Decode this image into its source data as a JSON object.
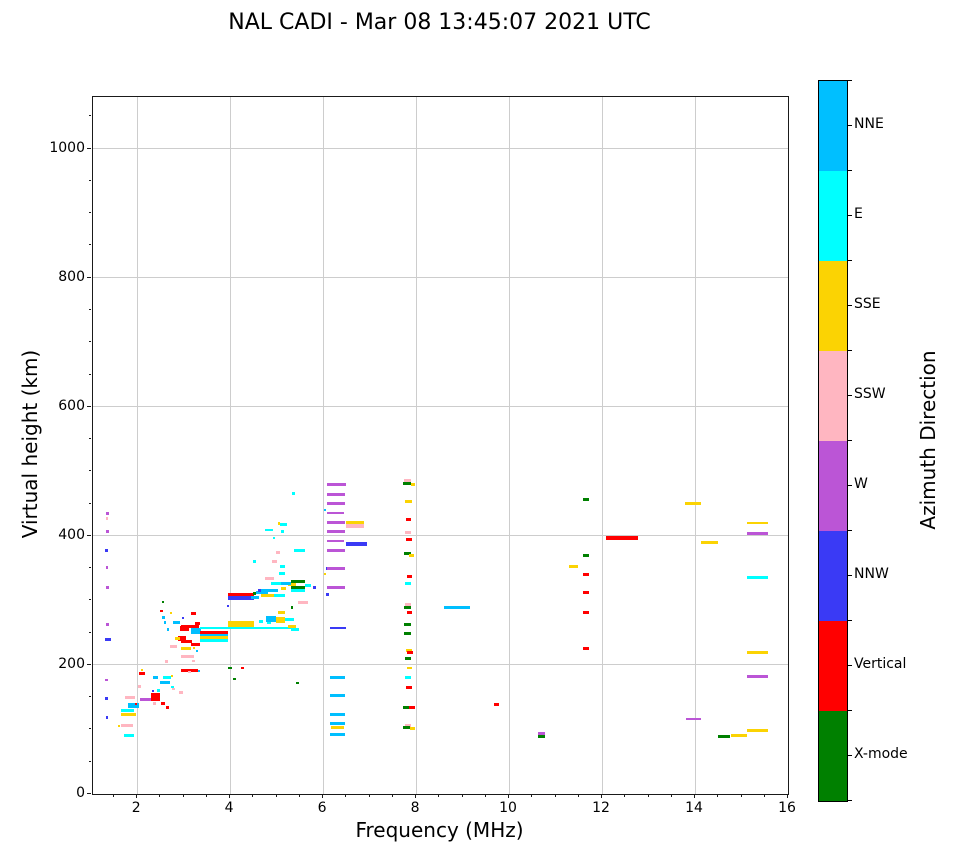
{
  "title": "NAL CADI - Mar 08 13:45:07 2021 UTC",
  "chart_data": {
    "type": "scatter",
    "title": "NAL CADI - Mar 08 13:45:07 2021 UTC",
    "xlabel": "Frequency (MHz)",
    "ylabel": "Virtual height (km)",
    "xlim": [
      1.05,
      16
    ],
    "ylim": [
      0,
      1080
    ],
    "x_ticks": [
      2,
      4,
      6,
      8,
      10,
      12,
      14,
      16
    ],
    "x_minor_step": 0.5,
    "y_ticks": [
      0,
      200,
      400,
      600,
      800,
      1000
    ],
    "y_minor_step": 50,
    "grid": true,
    "colorbar": {
      "label": "Azimuth Direction",
      "categories": [
        {
          "key": "NNE",
          "label": "NNE",
          "color": "#00BFFF"
        },
        {
          "key": "E",
          "label": "E",
          "color": "#00FFFF"
        },
        {
          "key": "SSE",
          "label": "SSE",
          "color": "#FBD303"
        },
        {
          "key": "SSW",
          "label": "SSW",
          "color": "#FFB6C1"
        },
        {
          "key": "W",
          "label": "W",
          "color": "#BB55D6"
        },
        {
          "key": "NNW",
          "label": "NNW",
          "color": "#3A3AF5"
        },
        {
          "key": "V",
          "label": "Vertical",
          "color": "#FF0000"
        },
        {
          "key": "X",
          "label": "X-mode",
          "color": "#008000"
        }
      ]
    },
    "point_format": [
      "freq_start_MHz",
      "freq_end_MHz",
      "height_km",
      "direction",
      "thickness_px_optional"
    ],
    "points": [
      [
        1.33,
        1.39,
        435,
        "W"
      ],
      [
        1.32,
        1.37,
        427,
        "SSW"
      ],
      [
        1.33,
        1.39,
        407,
        "W"
      ],
      [
        1.31,
        1.37,
        378,
        "NNW"
      ],
      [
        1.33,
        1.38,
        351,
        "W"
      ],
      [
        1.33,
        1.39,
        320,
        "W"
      ],
      [
        1.33,
        1.39,
        263,
        "W"
      ],
      [
        1.31,
        1.44,
        239,
        "NNW"
      ],
      [
        1.31,
        1.37,
        177,
        "W",
        2
      ],
      [
        1.31,
        1.37,
        148,
        "NNW"
      ],
      [
        1.32,
        1.38,
        118,
        "NNW"
      ],
      [
        1.59,
        1.64,
        105,
        "SSE",
        2
      ],
      [
        1.72,
        1.94,
        91,
        "E"
      ],
      [
        1.66,
        1.91,
        105.5,
        "SSW"
      ],
      [
        1.66,
        1.98,
        123.5,
        "SSE"
      ],
      [
        1.66,
        1.94,
        129,
        "E"
      ],
      [
        1.8,
        2.05,
        137,
        "NNE",
        5
      ],
      [
        1.74,
        1.96,
        150,
        "SSW"
      ],
      [
        1.95,
        2.0,
        140,
        "V",
        2
      ],
      [
        2.01,
        2.09,
        167,
        "SSW"
      ],
      [
        2.05,
        2.16,
        187,
        "V"
      ],
      [
        2.08,
        2.13,
        192,
        "SSE",
        2
      ],
      [
        2.07,
        2.29,
        146,
        "W"
      ],
      [
        2.29,
        2.5,
        150,
        "V",
        8
      ],
      [
        2.34,
        2.41,
        139.5,
        "SSW"
      ],
      [
        2.32,
        2.37,
        160,
        "NNW",
        2
      ],
      [
        2.43,
        2.5,
        160,
        "E"
      ],
      [
        2.34,
        2.45,
        180,
        "NNE"
      ],
      [
        2.5,
        2.7,
        172.5,
        "NNE"
      ],
      [
        2.55,
        2.72,
        181,
        "E"
      ],
      [
        2.72,
        2.77,
        183,
        "SSE",
        2
      ],
      [
        2.52,
        2.59,
        140,
        "V"
      ],
      [
        2.62,
        2.68,
        134,
        "V"
      ],
      [
        2.73,
        2.8,
        166,
        "E",
        2
      ],
      [
        2.76,
        2.81,
        162,
        "SSW",
        2
      ],
      [
        2.91,
        2.98,
        158,
        "SSW"
      ],
      [
        2.59,
        2.66,
        205,
        "SSW"
      ],
      [
        2.54,
        2.58,
        297,
        "X",
        2
      ],
      [
        2.5,
        2.55,
        284,
        "V",
        2
      ],
      [
        2.54,
        2.59,
        273,
        "NNE"
      ],
      [
        2.58,
        2.63,
        265,
        "NNE"
      ],
      [
        2.64,
        2.69,
        255,
        "NNE"
      ],
      [
        2.71,
        2.76,
        280,
        "SSE",
        2
      ],
      [
        2.97,
        3.01,
        273,
        "NNW",
        2
      ],
      [
        2.77,
        2.92,
        266,
        "NNE"
      ],
      [
        2.93,
        3.11,
        256,
        "V",
        5
      ],
      [
        2.88,
        3.06,
        241,
        "V",
        5
      ],
      [
        2.7,
        2.85,
        228,
        "SSW"
      ],
      [
        2.81,
        2.93,
        241,
        "SSE"
      ],
      [
        2.95,
        3.33,
        259,
        "V"
      ],
      [
        3.16,
        3.38,
        252,
        "NNE",
        6
      ],
      [
        3.16,
        3.27,
        279,
        "V"
      ],
      [
        3.25,
        3.36,
        264,
        "V"
      ],
      [
        3.16,
        3.36,
        232,
        "V"
      ],
      [
        3.2,
        3.25,
        226,
        "SSE",
        2
      ],
      [
        3.27,
        3.31,
        221,
        "NNE",
        2
      ],
      [
        2.95,
        3.23,
        213,
        "SSW"
      ],
      [
        3.19,
        3.24,
        206,
        "SSW",
        2
      ],
      [
        2.95,
        3.31,
        191,
        "V"
      ],
      [
        3.1,
        3.15,
        189,
        "SSW",
        2
      ],
      [
        3.3,
        3.35,
        191,
        "NNE",
        2
      ],
      [
        2.95,
        3.17,
        237,
        "V"
      ],
      [
        2.95,
        3.15,
        226,
        "SSE"
      ],
      [
        3.36,
        3.95,
        250,
        "V"
      ],
      [
        3.36,
        3.95,
        245.5,
        "NNE"
      ],
      [
        3.36,
        3.95,
        242,
        "SSE"
      ],
      [
        3.36,
        3.95,
        237.5,
        "E"
      ],
      [
        3.95,
        4.52,
        309,
        "V",
        4
      ],
      [
        3.95,
        4.52,
        303,
        "NNW",
        4
      ],
      [
        4.5,
        4.55,
        310,
        "X",
        3
      ],
      [
        4.56,
        4.81,
        312,
        "NNE"
      ],
      [
        4.63,
        5.03,
        316,
        "NNE"
      ],
      [
        4.61,
        4.67,
        316,
        "NNW"
      ],
      [
        4.67,
        4.95,
        308,
        "SSE"
      ],
      [
        4.95,
        5.17,
        307,
        "E"
      ],
      [
        4.45,
        4.63,
        304,
        "NNE"
      ],
      [
        3.95,
        4.52,
        262.5,
        "SSE",
        7
      ],
      [
        3.36,
        5.31,
        256.5,
        "E",
        2
      ],
      [
        4.63,
        4.7,
        267,
        "E"
      ],
      [
        4.8,
        4.87,
        265,
        "E"
      ],
      [
        3.93,
        3.97,
        292,
        "NNW",
        2
      ],
      [
        5.33,
        5.39,
        466,
        "E"
      ],
      [
        4.74,
        4.92,
        409,
        "E",
        2
      ],
      [
        5.02,
        5.07,
        419,
        "SSE"
      ],
      [
        5.08,
        5.22,
        418,
        "E"
      ],
      [
        5.1,
        5.15,
        406,
        "E"
      ],
      [
        4.92,
        4.97,
        397,
        "E",
        2
      ],
      [
        5.38,
        5.6,
        378,
        "E"
      ],
      [
        4.99,
        5.08,
        374,
        "SSW"
      ],
      [
        4.9,
        5.01,
        360,
        "SSW"
      ],
      [
        4.49,
        4.56,
        361,
        "E"
      ],
      [
        5.08,
        5.17,
        353,
        "E"
      ],
      [
        4.74,
        4.95,
        334,
        "SSW"
      ],
      [
        5.06,
        5.17,
        341,
        "E"
      ],
      [
        5.31,
        5.6,
        330,
        "X"
      ],
      [
        5.24,
        5.42,
        324,
        "SSE"
      ],
      [
        5.1,
        5.31,
        326,
        "NNE"
      ],
      [
        4.88,
        5.1,
        326,
        "E"
      ],
      [
        5.31,
        5.6,
        319.5,
        "X"
      ],
      [
        5.31,
        5.6,
        316,
        "E"
      ],
      [
        5.62,
        5.74,
        323,
        "E"
      ],
      [
        5.79,
        5.84,
        320,
        "NNW"
      ],
      [
        5.1,
        5.2,
        319,
        "SSE"
      ],
      [
        5.31,
        5.36,
        288.5,
        "X"
      ],
      [
        5.46,
        5.67,
        296,
        "SSW"
      ],
      [
        5.02,
        5.17,
        281,
        "SSE"
      ],
      [
        4.77,
        4.99,
        270.5,
        "NNE",
        6
      ],
      [
        4.99,
        5.17,
        269.5,
        "SSE",
        6
      ],
      [
        5.17,
        5.38,
        270.5,
        "E"
      ],
      [
        5.24,
        5.42,
        259,
        "SSE"
      ],
      [
        5.31,
        5.49,
        255,
        "E"
      ],
      [
        6.01,
        6.06,
        440,
        "NNE",
        2
      ],
      [
        6.07,
        6.12,
        350,
        "NNW"
      ],
      [
        6.07,
        6.12,
        309,
        "NNW"
      ],
      [
        6.02,
        6.07,
        341,
        "SSE",
        2
      ],
      [
        3.95,
        4.05,
        195,
        "X",
        2
      ],
      [
        4.24,
        4.3,
        195,
        "V",
        2
      ],
      [
        4.06,
        4.12,
        178,
        "X",
        2
      ],
      [
        5.42,
        5.48,
        172,
        "X",
        2
      ],
      [
        6.08,
        6.5,
        480,
        "W"
      ],
      [
        6.08,
        6.48,
        464,
        "W"
      ],
      [
        6.08,
        6.48,
        450,
        "W"
      ],
      [
        6.08,
        6.45,
        435,
        "W",
        2
      ],
      [
        6.08,
        6.48,
        420,
        "W"
      ],
      [
        6.49,
        6.88,
        420.5,
        "SSE",
        4
      ],
      [
        6.49,
        6.88,
        416,
        "SSW",
        4
      ],
      [
        6.08,
        6.48,
        406,
        "W"
      ],
      [
        6.08,
        6.45,
        392,
        "W",
        2
      ],
      [
        6.49,
        6.94,
        387.5,
        "NNW",
        4
      ],
      [
        6.08,
        6.48,
        378,
        "W"
      ],
      [
        6.08,
        6.48,
        350,
        "W"
      ],
      [
        6.08,
        6.48,
        320,
        "W"
      ],
      [
        6.15,
        6.5,
        257.5,
        "NNW",
        2
      ],
      [
        6.15,
        6.48,
        180,
        "NNE"
      ],
      [
        6.15,
        6.48,
        152,
        "NNE"
      ],
      [
        6.15,
        6.48,
        123,
        "NNE"
      ],
      [
        6.15,
        6.48,
        110,
        "NNE"
      ],
      [
        6.17,
        6.46,
        102.5,
        "SSE"
      ],
      [
        6.15,
        6.48,
        92,
        "NNE"
      ],
      [
        7.74,
        7.88,
        485,
        "SSW"
      ],
      [
        7.72,
        7.88,
        481,
        "X"
      ],
      [
        7.88,
        7.98,
        480,
        "SSE"
      ],
      [
        7.76,
        7.92,
        453.5,
        "SSE"
      ],
      [
        7.78,
        7.9,
        425,
        "V"
      ],
      [
        7.76,
        7.9,
        405.5,
        "SSW"
      ],
      [
        7.78,
        7.92,
        394,
        "V"
      ],
      [
        7.74,
        7.9,
        372,
        "X"
      ],
      [
        7.84,
        7.96,
        369,
        "SSE"
      ],
      [
        7.8,
        7.92,
        337.5,
        "V"
      ],
      [
        7.76,
        7.9,
        325.5,
        "E"
      ],
      [
        7.76,
        7.9,
        294,
        "SSW"
      ],
      [
        7.74,
        7.9,
        289.5,
        "X"
      ],
      [
        7.8,
        7.92,
        280.5,
        "V"
      ],
      [
        7.74,
        7.88,
        262.5,
        "X"
      ],
      [
        7.74,
        7.88,
        248,
        "X"
      ],
      [
        7.78,
        7.92,
        222.5,
        "SSE"
      ],
      [
        7.8,
        7.94,
        219,
        "V"
      ],
      [
        7.76,
        7.88,
        209.5,
        "X"
      ],
      [
        7.8,
        7.92,
        195.5,
        "SSE",
        2
      ],
      [
        7.76,
        7.9,
        180,
        "E"
      ],
      [
        7.78,
        7.92,
        164.5,
        "V"
      ],
      [
        7.72,
        7.85,
        134.5,
        "X"
      ],
      [
        7.85,
        7.97,
        133.5,
        "V"
      ],
      [
        7.76,
        7.9,
        105.5,
        "SSW"
      ],
      [
        7.72,
        7.86,
        103,
        "X"
      ],
      [
        7.86,
        7.98,
        101.5,
        "SSE"
      ],
      [
        8.59,
        9.15,
        289,
        "NNE"
      ],
      [
        9.67,
        9.79,
        138.5,
        "V"
      ],
      [
        10.62,
        10.77,
        93.5,
        "W"
      ],
      [
        10.62,
        10.77,
        89.4,
        "X"
      ],
      [
        11.28,
        11.48,
        353,
        "SSE"
      ],
      [
        11.58,
        11.73,
        456,
        "X"
      ],
      [
        11.6,
        11.73,
        370,
        "X"
      ],
      [
        11.6,
        11.73,
        340,
        "V"
      ],
      [
        11.6,
        11.73,
        312,
        "V"
      ],
      [
        11.6,
        11.73,
        282,
        "V"
      ],
      [
        11.6,
        11.73,
        226,
        "V"
      ],
      [
        12.08,
        12.77,
        396,
        "V",
        4
      ],
      [
        13.79,
        14.13,
        450.5,
        "SSE"
      ],
      [
        13.8,
        14.13,
        116.7,
        "W",
        2
      ],
      [
        14.13,
        14.49,
        389.5,
        "SSE"
      ],
      [
        14.5,
        14.76,
        88.4,
        "X"
      ],
      [
        14.77,
        15.12,
        89.9,
        "SSE"
      ],
      [
        15.12,
        15.58,
        419.7,
        "SSE",
        2
      ],
      [
        15.12,
        15.58,
        404,
        "W"
      ],
      [
        15.12,
        15.58,
        335.3,
        "E"
      ],
      [
        15.12,
        15.58,
        219.7,
        "SSE"
      ],
      [
        15.12,
        15.58,
        182.5,
        "W"
      ],
      [
        15.12,
        15.58,
        98.7,
        "SSE"
      ]
    ]
  }
}
